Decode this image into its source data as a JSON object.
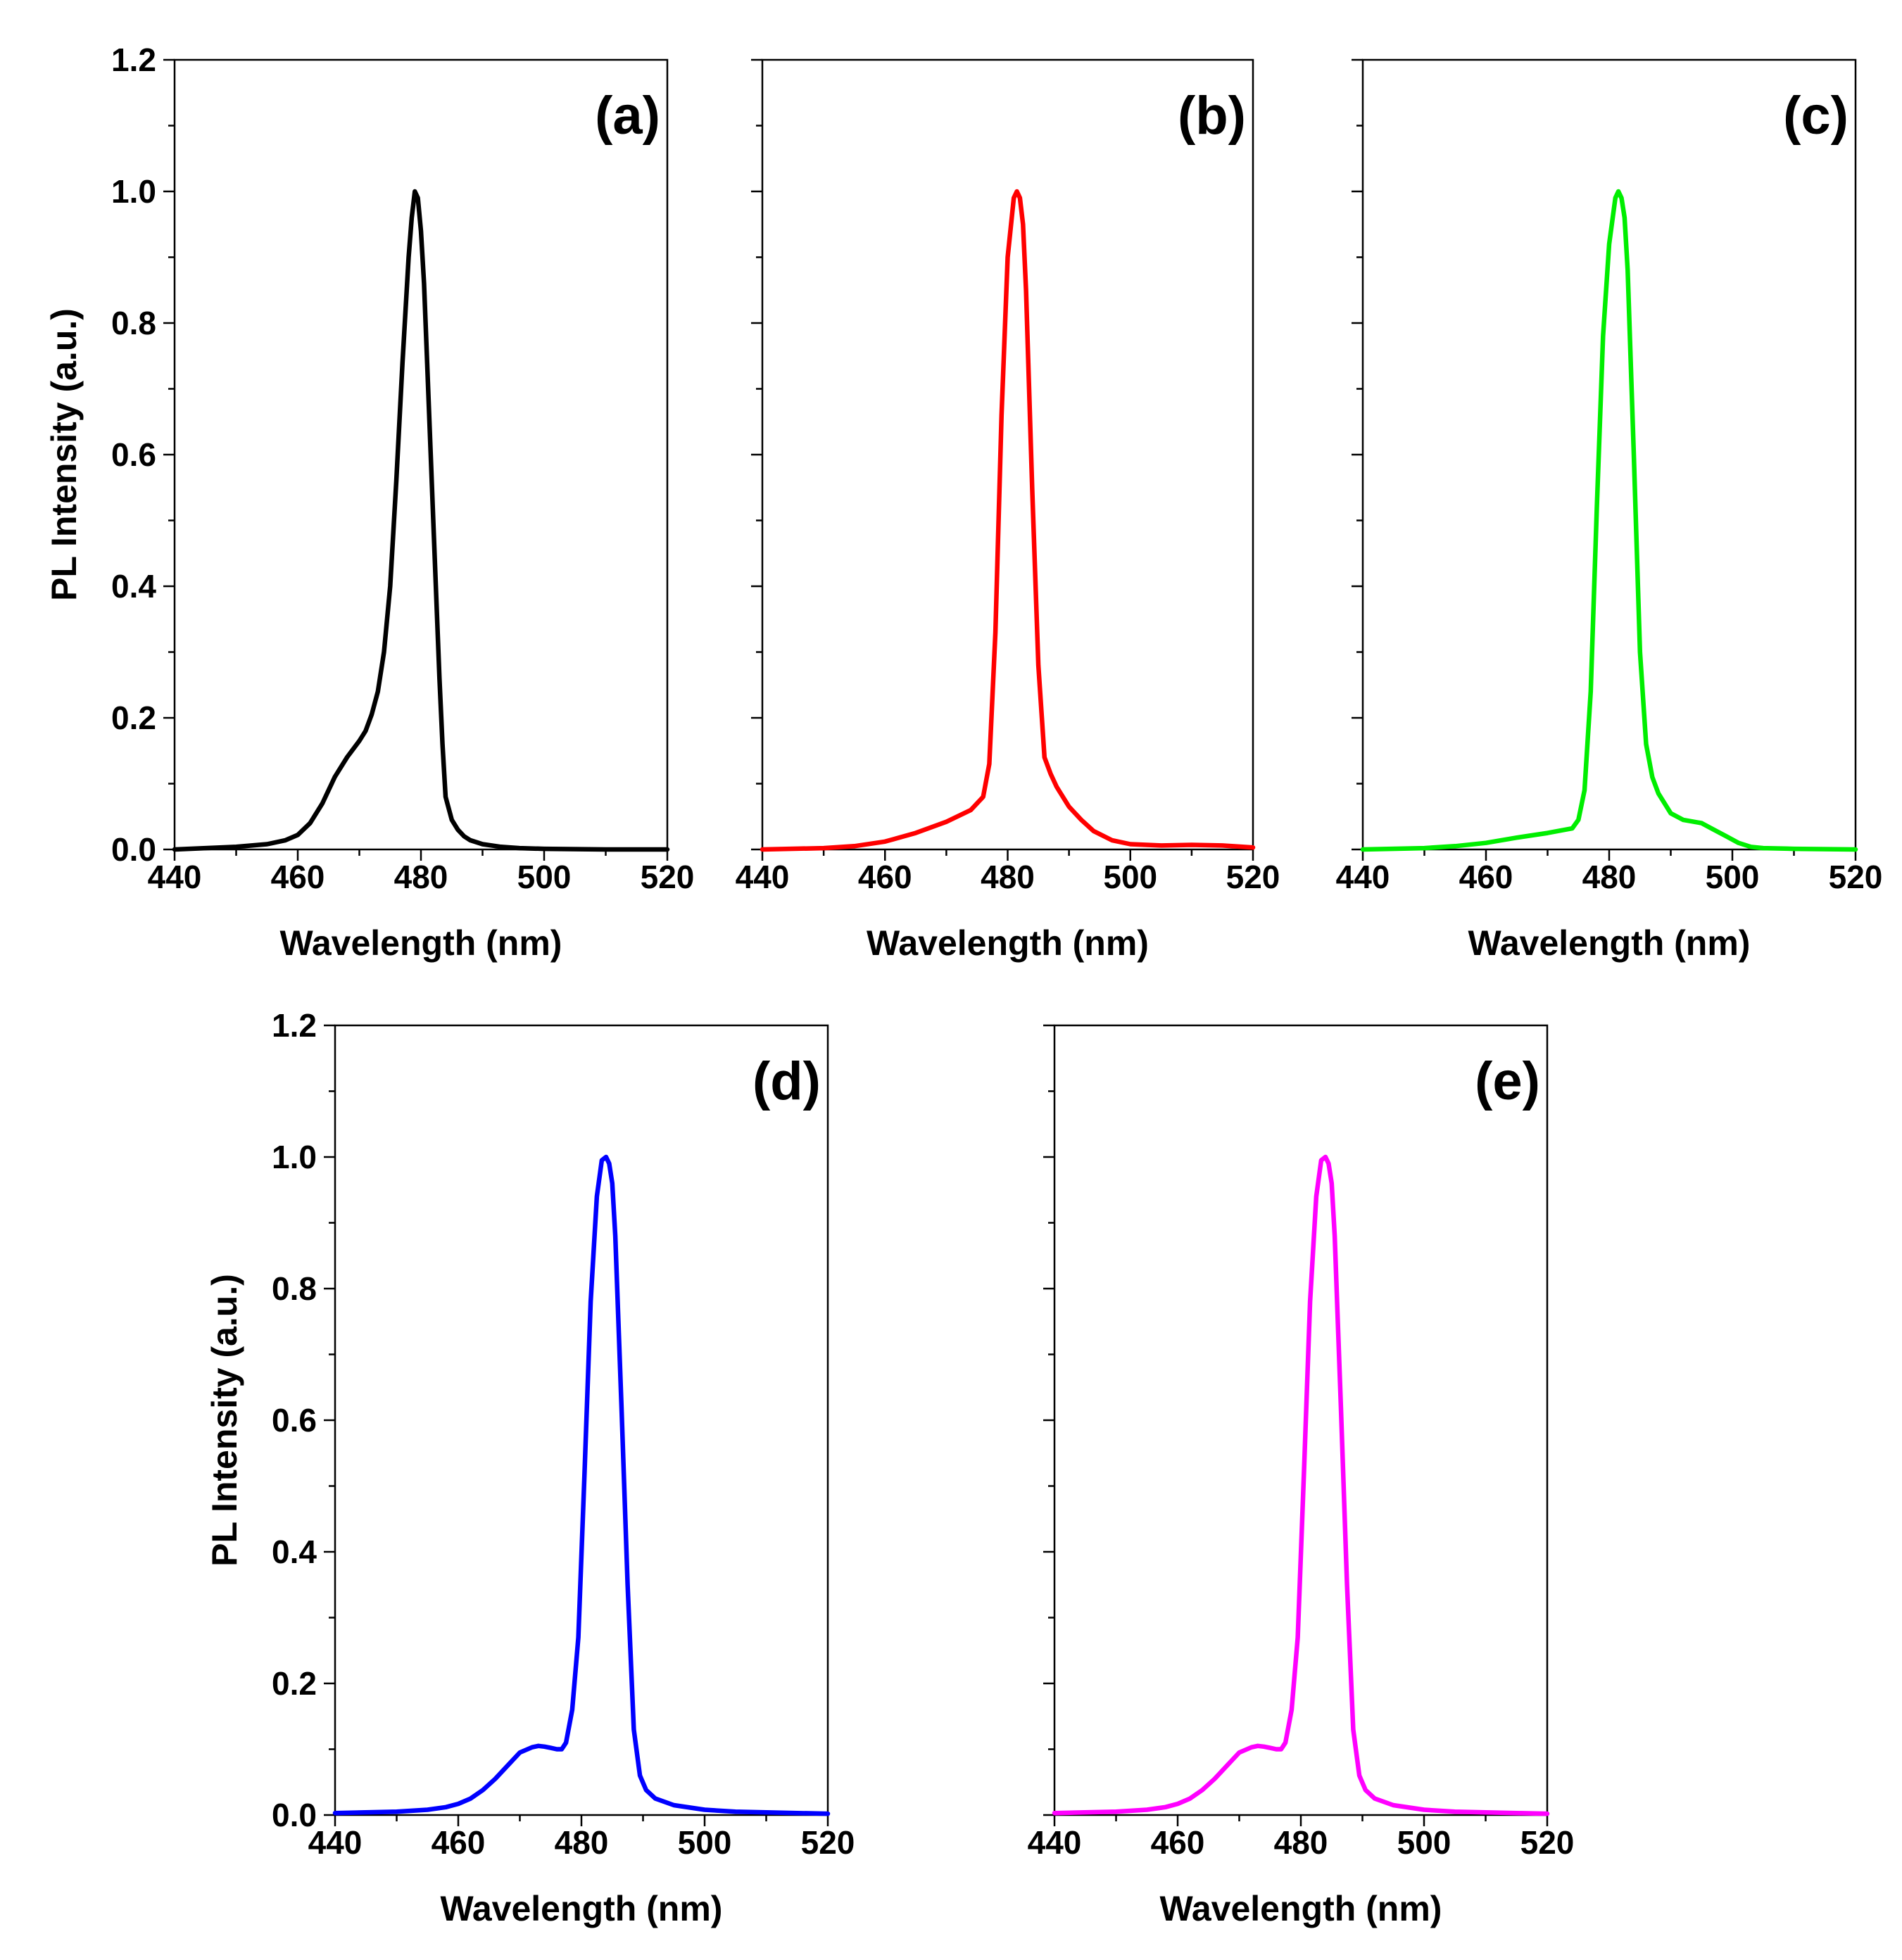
{
  "figure": {
    "colors": {
      "a": "#000000",
      "b": "#ff0000",
      "c": "#00ee00",
      "d": "#0000ff",
      "e": "#ff00ff"
    }
  },
  "chart_data": [
    {
      "type": "line",
      "panel": "(a)",
      "color": "#000000",
      "xlabel": "Wavelength (nm)",
      "ylabel": "PL Intensity (a.u.)",
      "xlim": [
        440,
        520
      ],
      "ylim": [
        0,
        1.2
      ],
      "xticks": [
        "440",
        "460",
        "480",
        "500",
        "520"
      ],
      "yticks": [
        "0.0",
        "0.2",
        "0.4",
        "0.6",
        "0.8",
        "1.0",
        "1.2"
      ],
      "x": [
        440,
        450,
        455,
        458,
        460,
        462,
        464,
        466,
        468,
        470,
        471,
        472,
        473,
        474,
        475,
        476,
        477,
        478,
        478.5,
        479,
        479.5,
        480,
        480.5,
        481,
        482,
        483,
        483.5,
        484,
        485,
        486,
        487,
        488,
        490,
        493,
        496,
        500,
        510,
        520
      ],
      "y": [
        0.0,
        0.004,
        0.008,
        0.014,
        0.022,
        0.04,
        0.07,
        0.11,
        0.14,
        0.165,
        0.18,
        0.205,
        0.24,
        0.3,
        0.4,
        0.56,
        0.74,
        0.9,
        0.96,
        1.0,
        0.99,
        0.94,
        0.86,
        0.74,
        0.5,
        0.26,
        0.16,
        0.08,
        0.045,
        0.03,
        0.02,
        0.014,
        0.008,
        0.004,
        0.002,
        0.001,
        0.0,
        0.0
      ]
    },
    {
      "type": "line",
      "panel": "(b)",
      "color": "#ff0000",
      "xlabel": "Wavelength (nm)",
      "ylabel": "",
      "xlim": [
        440,
        520
      ],
      "ylim": [
        0,
        1.2
      ],
      "xticks": [
        "440",
        "460",
        "480",
        "500",
        "520"
      ],
      "yticks": [],
      "x": [
        440,
        450,
        455,
        460,
        465,
        470,
        474,
        476,
        477,
        478,
        479,
        480,
        481,
        481.5,
        482,
        482.5,
        483,
        484,
        485,
        486,
        487,
        488,
        490,
        492,
        494,
        497,
        500,
        505,
        510,
        515,
        520
      ],
      "y": [
        0.0,
        0.002,
        0.005,
        0.012,
        0.025,
        0.042,
        0.06,
        0.08,
        0.13,
        0.33,
        0.66,
        0.9,
        0.99,
        1.0,
        0.99,
        0.95,
        0.85,
        0.55,
        0.28,
        0.14,
        0.115,
        0.095,
        0.065,
        0.045,
        0.028,
        0.014,
        0.008,
        0.006,
        0.007,
        0.006,
        0.003
      ]
    },
    {
      "type": "line",
      "panel": "(c)",
      "color": "#00ee00",
      "xlabel": "Wavelength (nm)",
      "ylabel": "",
      "xlim": [
        440,
        520
      ],
      "ylim": [
        0,
        1.2
      ],
      "xticks": [
        "440",
        "460",
        "480",
        "500",
        "520"
      ],
      "yticks": [],
      "x": [
        440,
        450,
        455,
        460,
        465,
        470,
        474,
        475,
        476,
        477,
        478,
        479,
        480,
        481,
        481.5,
        482,
        482.5,
        483,
        484,
        485,
        486,
        487,
        488,
        490,
        492,
        495,
        497,
        499,
        501,
        503,
        505,
        510,
        520
      ],
      "y": [
        0.0,
        0.002,
        0.005,
        0.01,
        0.018,
        0.025,
        0.032,
        0.045,
        0.09,
        0.24,
        0.52,
        0.78,
        0.92,
        0.99,
        1.0,
        0.99,
        0.96,
        0.88,
        0.6,
        0.3,
        0.16,
        0.11,
        0.085,
        0.055,
        0.045,
        0.04,
        0.03,
        0.02,
        0.01,
        0.004,
        0.002,
        0.001,
        0.0
      ]
    },
    {
      "type": "line",
      "panel": "(d)",
      "color": "#0000ff",
      "xlabel": "Wavelength (nm)",
      "ylabel": "PL Intensity (a.u.)",
      "xlim": [
        440,
        520
      ],
      "ylim": [
        0,
        1.2
      ],
      "xticks": [
        "440",
        "460",
        "480",
        "500",
        "520"
      ],
      "yticks": [
        "0.0",
        "0.2",
        "0.4",
        "0.6",
        "0.8",
        "1.0",
        "1.2"
      ],
      "x": [
        440,
        450,
        455,
        458,
        460,
        462,
        464,
        466,
        468,
        470,
        472,
        473,
        474,
        475,
        476,
        476.8,
        477.5,
        478.5,
        479.5,
        480.5,
        481.5,
        482.5,
        483.3,
        484,
        484.5,
        485,
        485.5,
        486.5,
        487.5,
        488.5,
        489.5,
        490.5,
        492,
        495,
        500,
        505,
        510,
        520
      ],
      "y": [
        0.003,
        0.005,
        0.008,
        0.012,
        0.017,
        0.025,
        0.038,
        0.055,
        0.075,
        0.095,
        0.103,
        0.105,
        0.104,
        0.102,
        0.1,
        0.1,
        0.11,
        0.16,
        0.27,
        0.52,
        0.78,
        0.94,
        0.995,
        1.0,
        0.99,
        0.96,
        0.88,
        0.62,
        0.35,
        0.13,
        0.06,
        0.038,
        0.025,
        0.015,
        0.008,
        0.005,
        0.004,
        0.002
      ]
    },
    {
      "type": "line",
      "panel": "(e)",
      "color": "#ff00ff",
      "xlabel": "Wavelength (nm)",
      "ylabel": "",
      "xlim": [
        440,
        520
      ],
      "ylim": [
        0,
        1.2
      ],
      "xticks": [
        "440",
        "460",
        "480",
        "500",
        "520"
      ],
      "yticks": [],
      "x": [
        440,
        450,
        455,
        458,
        460,
        462,
        464,
        466,
        468,
        470,
        472,
        473,
        474,
        475,
        476,
        476.8,
        477.5,
        478.5,
        479.5,
        480.5,
        481.5,
        482.5,
        483.3,
        484,
        484.5,
        485,
        485.5,
        486.5,
        487.5,
        488.5,
        489.5,
        490.5,
        492,
        495,
        500,
        505,
        510,
        520
      ],
      "y": [
        0.003,
        0.005,
        0.008,
        0.012,
        0.017,
        0.025,
        0.038,
        0.055,
        0.075,
        0.095,
        0.103,
        0.105,
        0.104,
        0.102,
        0.1,
        0.1,
        0.11,
        0.16,
        0.27,
        0.52,
        0.78,
        0.94,
        0.995,
        1.0,
        0.99,
        0.96,
        0.88,
        0.62,
        0.35,
        0.13,
        0.06,
        0.038,
        0.025,
        0.015,
        0.008,
        0.005,
        0.004,
        0.002
      ]
    }
  ]
}
